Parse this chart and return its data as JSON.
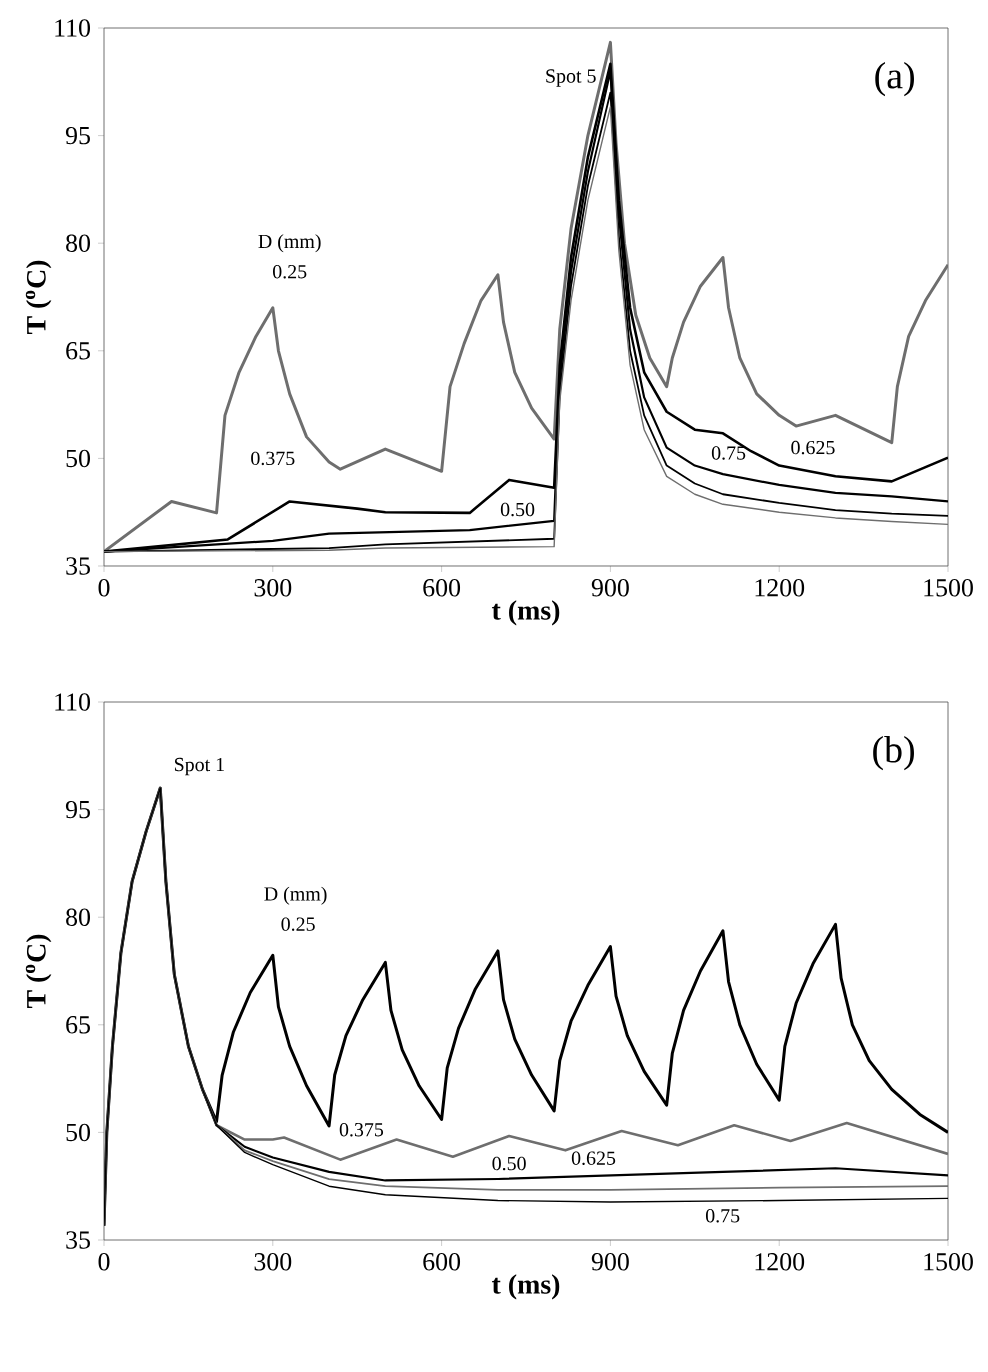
{
  "chart_data": [
    {
      "type": "line",
      "title": "(a)",
      "xlabel": "t (ms)",
      "ylabel": "T ($^{o}$C)",
      "xlim": [
        0,
        1500
      ],
      "ylim": [
        35,
        110
      ],
      "xticks": [
        0,
        300,
        600,
        900,
        1200,
        1500
      ],
      "yticks": [
        35,
        50,
        65,
        80,
        95,
        110
      ],
      "marker": "none",
      "line_style": "solid",
      "grid": false,
      "series": [
        {
          "color": "#6e6e6e",
          "x": [
            0,
            120,
            200,
            215,
            240,
            270,
            300,
            310,
            330,
            360,
            400,
            420,
            500,
            600,
            615,
            640,
            670,
            700,
            710,
            730,
            760,
            800,
            810,
            830,
            860,
            900,
            910,
            925,
            945,
            970,
            1000,
            1010,
            1030,
            1060,
            1100,
            1110,
            1130,
            1160,
            1200,
            1230,
            1300,
            1400,
            1410,
            1430,
            1460,
            1500
          ],
          "values": [
            37,
            44,
            42.4,
            56,
            62,
            67,
            71,
            65,
            59,
            53,
            49.5,
            48.5,
            51.3,
            48.2,
            60,
            66,
            72,
            75.6,
            69,
            62,
            57,
            52.7,
            68,
            82,
            95,
            108,
            94,
            80,
            70,
            64,
            60,
            64,
            69,
            74,
            78,
            71,
            64,
            59,
            56,
            54.5,
            56,
            52.2,
            60,
            67,
            72,
            77
          ]
        },
        {
          "color": "#000000",
          "x": [
            0,
            220,
            330,
            450,
            500,
            650,
            720,
            800,
            810,
            830,
            860,
            900,
            915,
            935,
            960,
            1000,
            1050,
            1100,
            1150,
            1200,
            1300,
            1400,
            1500
          ],
          "values": [
            37,
            38.7,
            44,
            43,
            42.5,
            42.4,
            47,
            45.9,
            63,
            78,
            92,
            105,
            86,
            71,
            62,
            56.5,
            54,
            53.5,
            51,
            49,
            47.5,
            46.8,
            50.1
          ]
        },
        {
          "color": "#000000",
          "x": [
            0,
            300,
            400,
            650,
            800,
            810,
            830,
            860,
            900,
            915,
            935,
            960,
            1000,
            1050,
            1100,
            1200,
            1300,
            1400,
            1500
          ],
          "values": [
            37,
            38.5,
            39.5,
            40,
            41.3,
            61,
            76,
            90,
            104,
            84,
            68,
            58.5,
            51.5,
            49,
            47.8,
            46.3,
            45.2,
            44.7,
            44
          ]
        },
        {
          "color": "#000000",
          "x": [
            0,
            400,
            500,
            800,
            810,
            830,
            860,
            900,
            915,
            935,
            960,
            1000,
            1050,
            1100,
            1200,
            1300,
            1400,
            1500
          ],
          "values": [
            37,
            37.5,
            38,
            38.8,
            59,
            74,
            88,
            101,
            81,
            65,
            56,
            49,
            46.5,
            45,
            43.8,
            42.8,
            42.3,
            42
          ]
        },
        {
          "color": "#6e6e6e",
          "x": [
            0,
            400,
            500,
            800,
            810,
            830,
            860,
            900,
            915,
            935,
            960,
            1000,
            1050,
            1100,
            1200,
            1300,
            1400,
            1500
          ],
          "values": [
            37,
            37.2,
            37.5,
            37.7,
            58,
            72,
            86,
            99,
            79,
            63,
            54,
            47.5,
            45,
            43.6,
            42.5,
            41.7,
            41.2,
            40.8
          ]
        }
      ],
      "annotations": [
        "Spot 5",
        "D (mm)",
        "0.25",
        "0.375",
        "0.50",
        "0.75",
        "0.625"
      ]
    },
    {
      "type": "line",
      "title": "(b)",
      "xlabel": "t (ms)",
      "ylabel": "T ($^{o}$C)",
      "xlim": [
        0,
        1500
      ],
      "ylim": [
        35,
        110
      ],
      "xticks": [
        0,
        300,
        600,
        900,
        1200,
        1500
      ],
      "yticks": [
        35,
        50,
        65,
        80,
        95,
        110
      ],
      "marker": "none",
      "line_style": "solid",
      "grid": false,
      "series": [
        {
          "color": "#000000",
          "x": [
            0,
            5,
            15,
            30,
            50,
            75,
            100,
            110,
            125,
            150,
            175,
            200,
            210,
            230,
            260,
            300,
            310,
            330,
            360,
            400,
            410,
            430,
            460,
            500,
            510,
            530,
            560,
            600,
            610,
            630,
            660,
            700,
            710,
            730,
            760,
            800,
            810,
            830,
            860,
            900,
            910,
            930,
            960,
            1000,
            1010,
            1030,
            1060,
            1100,
            1110,
            1130,
            1160,
            1200,
            1210,
            1230,
            1260,
            1300,
            1310,
            1330,
            1360,
            1400,
            1450,
            1500
          ],
          "values": [
            37,
            50,
            62,
            75,
            85,
            92,
            98,
            85,
            72,
            62,
            56,
            51.5,
            58,
            64,
            69.5,
            74.7,
            67.5,
            62,
            56.5,
            50.9,
            58,
            63.5,
            68.5,
            73.7,
            67,
            61.5,
            56.5,
            51.8,
            59,
            64.5,
            70,
            75.3,
            68.5,
            63,
            58,
            53,
            60,
            65.5,
            70.5,
            75.9,
            69,
            63.5,
            58.5,
            53.8,
            61,
            67,
            72.5,
            78.1,
            71,
            65,
            59.5,
            54.5,
            62,
            68,
            73.5,
            79,
            71.5,
            65,
            60,
            56,
            52.5,
            50
          ]
        },
        {
          "color": "#6e6e6e",
          "x": [
            0,
            5,
            15,
            30,
            50,
            75,
            100,
            110,
            125,
            150,
            175,
            200,
            250,
            300,
            320,
            420,
            520,
            620,
            720,
            820,
            920,
            1020,
            1120,
            1220,
            1320,
            1500
          ],
          "values": [
            37,
            50,
            62,
            75,
            85,
            92,
            98,
            85,
            72,
            62,
            56,
            51,
            49,
            49,
            49.3,
            46.2,
            49,
            46.6,
            49.5,
            47.5,
            50.2,
            48.2,
            51,
            48.8,
            51.3,
            47
          ]
        },
        {
          "color": "#000000",
          "x": [
            0,
            5,
            15,
            30,
            50,
            75,
            100,
            110,
            125,
            150,
            175,
            200,
            250,
            300,
            400,
            500,
            700,
            900,
            1100,
            1300,
            1500
          ],
          "values": [
            37,
            50,
            62,
            75,
            85,
            92,
            98,
            85,
            72,
            62,
            56,
            51,
            48,
            46.5,
            44.5,
            43.3,
            43.5,
            44,
            44.5,
            45,
            44
          ]
        },
        {
          "color": "#6e6e6e",
          "x": [
            0,
            5,
            15,
            30,
            50,
            75,
            100,
            110,
            125,
            150,
            175,
            200,
            250,
            300,
            400,
            500,
            700,
            900,
            1200,
            1500
          ],
          "values": [
            37,
            50,
            62,
            75,
            85,
            92,
            98,
            85,
            72,
            62,
            56,
            51,
            47.5,
            46,
            43.5,
            42.5,
            42,
            42,
            42.3,
            42.5
          ]
        },
        {
          "color": "#000000",
          "x": [
            0,
            5,
            15,
            30,
            50,
            75,
            100,
            110,
            125,
            150,
            175,
            200,
            250,
            300,
            400,
            500,
            700,
            900,
            1200,
            1500
          ],
          "values": [
            37,
            50,
            62,
            75,
            85,
            92,
            98,
            85,
            72,
            62,
            56,
            51,
            47.2,
            45.5,
            42.5,
            41.3,
            40.5,
            40.3,
            40.5,
            40.8
          ]
        }
      ],
      "annotations": [
        "Spot 1",
        "D (mm)",
        "0.25",
        "0.375",
        "0.50",
        "0.625",
        "0.75"
      ]
    }
  ]
}
